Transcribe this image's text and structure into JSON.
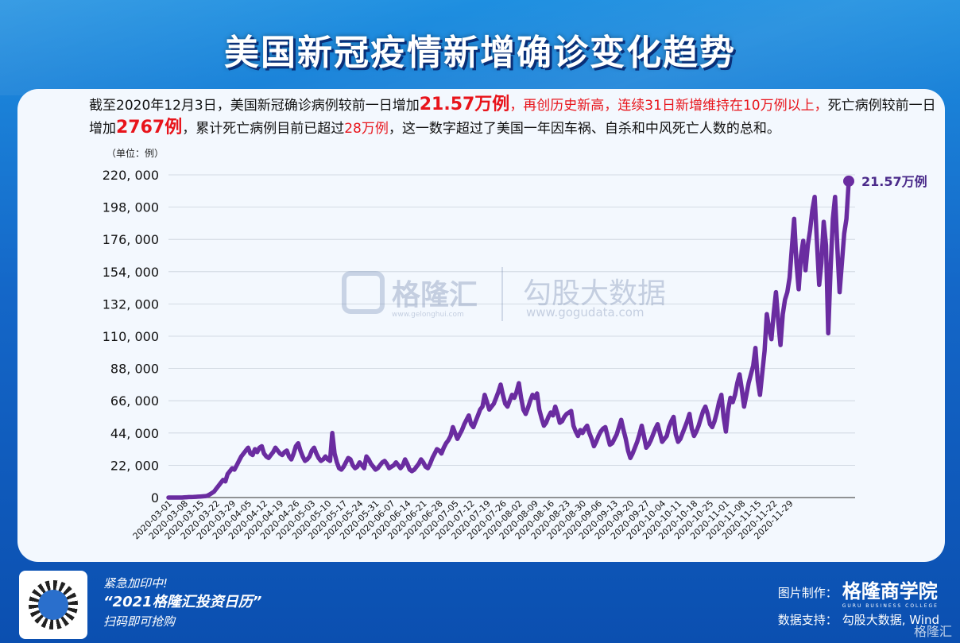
{
  "title": "美国新冠疫情新增确诊变化趋势",
  "intro": {
    "t1": "截至2020年12月3日，美国新冠确诊病例较前一日增加",
    "t2": "21.57万例",
    "t3": "，再创历史新高，连续31日新增维持在10万例以上，",
    "t4": "死亡病例较前一日增加",
    "t5": "2767例",
    "t6": "，累计死亡病例目前已超过",
    "t7": "28万例",
    "t8": "，这一数字超过了美国一年因车祸、自杀和中风死亡人数的总和。"
  },
  "watermark": {
    "brand1": "格隆汇",
    "brand1_url": "www.gelonghui.com",
    "brand2": "勾股大数据",
    "brand2_url": "www.gogudata.com"
  },
  "footer": {
    "promo1": "紧急加印中!",
    "promo2": "“2021格隆汇投资日历”",
    "promo3": "扫码即可抢购",
    "made_label": "图片制作：",
    "made_brand": "格隆商学院",
    "made_brand_sub": "GURU BUSINESS COLLEGE",
    "data_label": "数据支持：",
    "data_src": "勾股大数据, Wind",
    "corner_logo": "格隆汇"
  },
  "colors": {
    "line": "#6a2ca0",
    "accent_red": "#e8141b",
    "panel": "#f3f8fe"
  },
  "chart_data": {
    "type": "line",
    "unit_label": "（单位：例）",
    "ylim": [
      0,
      220000
    ],
    "yticks": [
      "0",
      "22, 000",
      "44, 000",
      "66, 000",
      "88, 000",
      "110, 000",
      "132, 000",
      "154, 000",
      "176, 000",
      "198, 000",
      "220, 000"
    ],
    "x_ticks": [
      "2020-03-01",
      "2020-03-08",
      "2020-03-15",
      "2020-03-22",
      "2020-03-29",
      "2020-04-05",
      "2020-04-12",
      "2020-04-19",
      "2020-04-26",
      "2020-05-03",
      "2020-05-10",
      "2020-05-17",
      "2020-05-24",
      "2020-05-31",
      "2020-06-07",
      "2020-06-14",
      "2020-06-21",
      "2020-06-28",
      "2020-07-05",
      "2020-07-12",
      "2020-07-19",
      "2020-07-26",
      "2020-08-02",
      "2020-08-09",
      "2020-08-16",
      "2020-08-23",
      "2020-08-30",
      "2020-09-06",
      "2020-09-13",
      "2020-09-20",
      "2020-09-27",
      "2020-10-04",
      "2020-10-11",
      "2020-10-18",
      "2020-10-25",
      "2020-11-01",
      "2020-11-08",
      "2020-11-15",
      "2020-11-22",
      "2020-11-29"
    ],
    "end_label": "21.57万例",
    "grid": true,
    "series": [
      {
        "values": [
          0,
          0,
          0,
          0,
          0,
          0,
          0,
          100,
          200,
          300,
          300,
          400,
          500,
          600,
          700,
          800,
          900,
          1200,
          2000,
          3000,
          4000,
          6000,
          8000,
          10000,
          12000,
          11000,
          16000,
          18000,
          20000,
          19000,
          22000,
          25000,
          28000,
          30000,
          32000,
          34000,
          30000,
          29000,
          33000,
          31000,
          34000,
          35000,
          30000,
          28000,
          27000,
          29000,
          31000,
          34000,
          32000,
          30000,
          29000,
          31000,
          32000,
          28000,
          26000,
          30000,
          35000,
          37000,
          32000,
          28000,
          25000,
          26000,
          28000,
          32000,
          34000,
          30000,
          27000,
          25000,
          26000,
          28000,
          26000,
          25000,
          44000,
          30000,
          24000,
          20000,
          19000,
          21000,
          24000,
          27000,
          26000,
          22000,
          20000,
          21000,
          24000,
          22000,
          20000,
          28000,
          26000,
          23000,
          21000,
          19000,
          20000,
          22000,
          24000,
          25000,
          23000,
          20000,
          21000,
          22000,
          24000,
          22000,
          20000,
          22000,
          26000,
          23000,
          19000,
          18000,
          19000,
          21000,
          23000,
          26000,
          24000,
          21000,
          20000,
          23000,
          27000,
          30000,
          33000,
          32000,
          30000,
          34000,
          37000,
          39000,
          42000,
          48000,
          44000,
          40000,
          43000,
          46000,
          50000,
          53000,
          56000,
          50000,
          48000,
          52000,
          56000,
          60000,
          62000,
          70000,
          65000,
          60000,
          62000,
          64000,
          68000,
          72000,
          77000,
          70000,
          64000,
          62000,
          66000,
          70000,
          68000,
          72000,
          78000,
          68000,
          60000,
          57000,
          61000,
          66000,
          70000,
          68000,
          71000,
          60000,
          54000,
          49000,
          51000,
          55000,
          58000,
          56000,
          62000,
          57000,
          51000,
          52000,
          55000,
          57000,
          58000,
          59000,
          49000,
          45000,
          42000,
          46000,
          44000,
          47000,
          49000,
          44000,
          40000,
          35000,
          38000,
          42000,
          45000,
          47000,
          48000,
          42000,
          36000,
          37000,
          40000,
          43000,
          48000,
          53000,
          46000,
          40000,
          32000,
          27000,
          30000,
          34000,
          38000,
          43000,
          49000,
          42000,
          34000,
          36000,
          39000,
          43000,
          47000,
          50000,
          44000,
          38000,
          40000,
          42000,
          48000,
          52000,
          55000,
          43000,
          38000,
          40000,
          44000,
          48000,
          52000,
          57000,
          47000,
          42000,
          45000,
          49000,
          54000,
          59000,
          62000,
          57000,
          50000,
          48000,
          52000,
          58000,
          65000,
          70000,
          55000,
          45000,
          60000,
          68000,
          65000,
          70000,
          78000,
          84000,
          74000,
          62000,
          70000,
          78000,
          84000,
          90000,
          102000,
          80000,
          70000,
          85000,
          100000,
          125000,
          115000,
          108000,
          125000,
          140000,
          120000,
          104000,
          125000,
          135000,
          140000,
          150000,
          170000,
          190000,
          160000,
          142000,
          165000,
          175000,
          155000,
          172000,
          182000,
          196000,
          205000,
          175000,
          145000,
          160000,
          188000,
          172000,
          112000,
          155000,
          190000,
          205000,
          170000,
          140000,
          160000,
          180000,
          190000,
          215700
        ]
      }
    ]
  }
}
